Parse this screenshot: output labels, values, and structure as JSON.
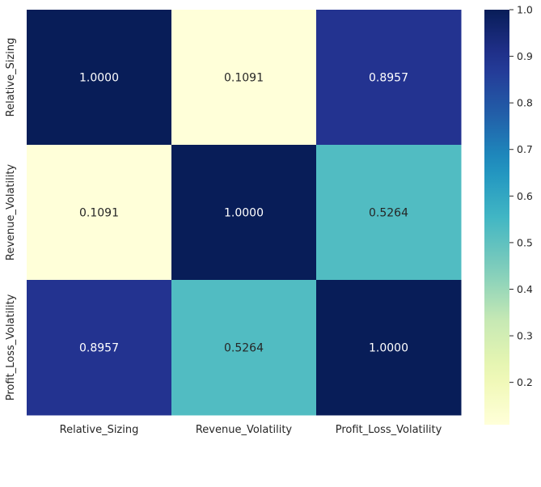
{
  "chart_data": {
    "type": "heatmap",
    "title": "",
    "xlabel": "",
    "ylabel": "",
    "x_categories": [
      "Relative_Sizing",
      "Revenue_Volatility",
      "Profit_Loss_Volatility"
    ],
    "y_categories": [
      "Relative_Sizing",
      "Revenue_Volatility",
      "Profit_Loss_Volatility"
    ],
    "values": [
      [
        1.0,
        0.1091,
        0.8957
      ],
      [
        0.1091,
        1.0,
        0.5264
      ],
      [
        0.8957,
        0.5264,
        1.0
      ]
    ],
    "cell_labels": [
      [
        "1.0000",
        "0.1091",
        "0.8957"
      ],
      [
        "0.1091",
        "1.0000",
        "0.5264"
      ],
      [
        "0.8957",
        "0.5264",
        "1.0000"
      ]
    ],
    "colormap": "YlGnBu",
    "colorbar": {
      "range": [
        0.1091,
        1.0
      ],
      "ticks": [
        0.2,
        0.3,
        0.4,
        0.5,
        0.6,
        0.7,
        0.8,
        0.9,
        1.0
      ],
      "tick_labels": [
        "0.2",
        "0.3",
        "0.4",
        "0.5",
        "0.6",
        "0.7",
        "0.8",
        "0.9",
        "1.0"
      ]
    },
    "grid": false,
    "legend": "colorbar-right"
  }
}
